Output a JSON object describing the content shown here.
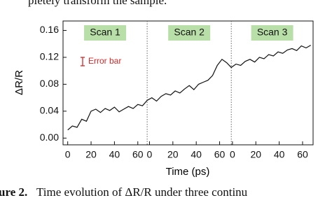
{
  "caption_top": "pletely transform the sample.",
  "caption_bottom": {
    "label": "ure 2.",
    "text": "Time evolution of ΔR/R under three continu"
  },
  "chart_data": {
    "type": "line",
    "ylabel": "ΔR/R",
    "xlabel": "Time (ps)",
    "color": "#111111",
    "x": [
      0,
      4,
      8,
      12,
      16,
      20,
      24,
      28,
      32,
      36,
      40,
      44,
      48,
      52,
      56,
      60,
      64,
      68,
      72,
      76,
      80,
      84,
      88,
      92,
      96,
      100,
      104,
      108,
      112,
      116,
      120,
      124,
      128,
      132,
      136,
      140,
      144,
      148,
      152,
      156,
      160,
      164,
      168,
      172,
      176,
      180,
      184,
      188,
      192,
      196,
      200,
      204,
      208
    ],
    "values": [
      0.012,
      0.018,
      0.016,
      0.028,
      0.025,
      0.04,
      0.043,
      0.038,
      0.044,
      0.041,
      0.046,
      0.039,
      0.043,
      0.047,
      0.044,
      0.05,
      0.048,
      0.056,
      0.06,
      0.055,
      0.062,
      0.066,
      0.064,
      0.07,
      0.067,
      0.073,
      0.078,
      0.072,
      0.08,
      0.083,
      0.086,
      0.093,
      0.108,
      0.117,
      0.112,
      0.105,
      0.11,
      0.108,
      0.114,
      0.117,
      0.113,
      0.12,
      0.118,
      0.124,
      0.122,
      0.128,
      0.126,
      0.131,
      0.133,
      0.13,
      0.137,
      0.134,
      0.138
    ],
    "xlim": [
      -4,
      210
    ],
    "ylim": [
      -0.01,
      0.174
    ],
    "xticks": [
      0,
      20,
      40,
      60,
      {
        "value": 70,
        "label": "0"
      },
      {
        "value": 90,
        "label": "20"
      },
      {
        "value": 110,
        "label": "40"
      },
      {
        "value": 130,
        "label": "60"
      },
      {
        "value": 141,
        "label": "0"
      },
      {
        "value": 161,
        "label": "20"
      },
      {
        "value": 181,
        "label": "40"
      },
      {
        "value": 201,
        "label": "60"
      }
    ],
    "yticks": [
      {
        "value": 0,
        "label": "0.00"
      },
      {
        "value": 0.04,
        "label": "0.04"
      },
      {
        "value": 0.08,
        "label": "0.08"
      },
      {
        "value": 0.12,
        "label": "0.12"
      },
      {
        "value": 0.16,
        "label": "0.16"
      }
    ],
    "dividers": [
      68,
      140
    ],
    "scans": [
      "Scan 1",
      "Scan 2",
      "Scan 3"
    ],
    "annotation": "Error bar"
  }
}
